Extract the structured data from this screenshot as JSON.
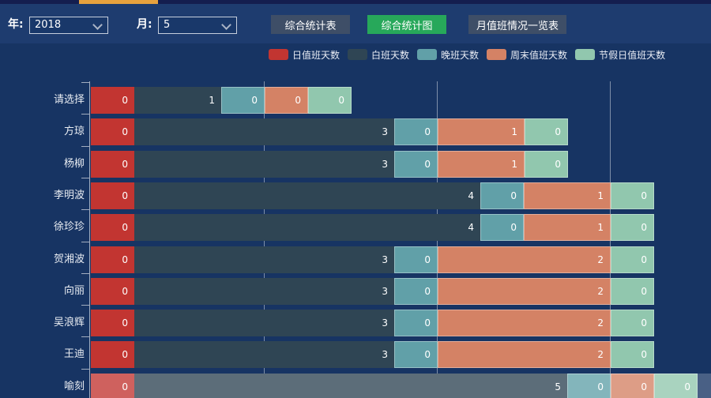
{
  "top_strip": {
    "accent_color": "#e7a23e"
  },
  "toolbar": {
    "year_label": "年:",
    "year_value": "2018",
    "month_label": "月:",
    "month_value": "5",
    "buttons": [
      {
        "label": "综合统计表",
        "active": false
      },
      {
        "label": "综合统计图",
        "active": true
      },
      {
        "label": "月值班情况一览表",
        "active": false
      }
    ],
    "active_color": "#27a85a",
    "inactive_color": "#3e4e67"
  },
  "chart_data": {
    "type": "bar",
    "orientation": "horizontal",
    "stacked": true,
    "title": "",
    "legend_position": "top",
    "grid": true,
    "categories": [
      "请选择",
      "方琼",
      "杨柳",
      "李明波",
      "徐珍珍",
      "贺湘波",
      "向丽",
      "吴浪辉",
      "王迪",
      "喻刻"
    ],
    "series": [
      {
        "name": "日值班天数",
        "color": "#c23531",
        "values": [
          0,
          0,
          0,
          0,
          0,
          0,
          0,
          0,
          0,
          0
        ]
      },
      {
        "name": "白班天数",
        "color": "#2f4554",
        "values": [
          1,
          3,
          3,
          4,
          4,
          3,
          3,
          3,
          3,
          5
        ]
      },
      {
        "name": "晚班天数",
        "color": "#61a0a8",
        "values": [
          0,
          0,
          0,
          0,
          0,
          0,
          0,
          0,
          0,
          0
        ]
      },
      {
        "name": "周末值班天数",
        "color": "#d48265",
        "values": [
          0,
          1,
          1,
          1,
          1,
          2,
          2,
          2,
          2,
          0
        ]
      },
      {
        "name": "节假日值班天数",
        "color": "#91c7ae",
        "values": [
          0,
          0,
          0,
          0,
          0,
          0,
          0,
          0,
          0,
          0
        ]
      }
    ],
    "x_axis": {
      "tick_values": [
        2,
        4,
        6
      ],
      "min": 0
    },
    "value_label_position": "inside-right",
    "zero_segment_render_units": 0.5,
    "highlighted_row": "喻刻"
  }
}
